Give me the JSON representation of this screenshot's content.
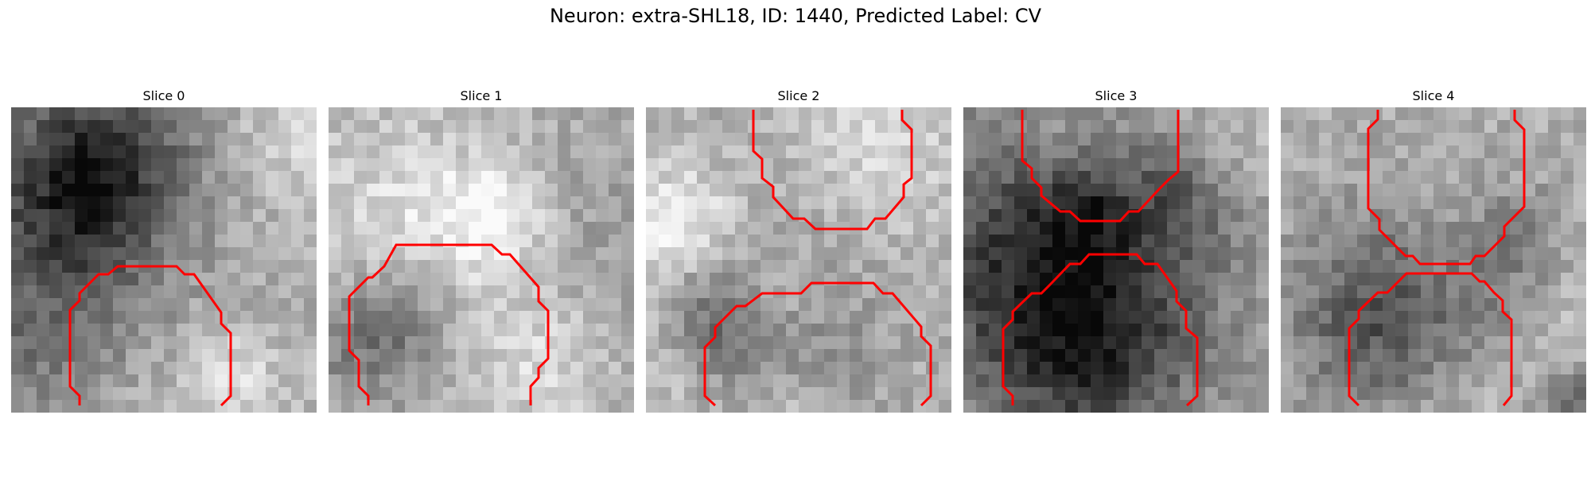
{
  "figure": {
    "title": "Neuron: extra-SHL18, ID: 1440, Predicted Label: CV"
  },
  "colors": {
    "background": "#ffffff",
    "contour": "#ff0000",
    "image_palette": "grayscale"
  },
  "panels": [
    {
      "title": "Slice 0",
      "content": "grayscale microscopy tile with red contour"
    },
    {
      "title": "Slice 1",
      "content": "grayscale microscopy tile with red contour"
    },
    {
      "title": "Slice 2",
      "content": "grayscale microscopy tile with red contours"
    },
    {
      "title": "Slice 3",
      "content": "grayscale microscopy tile with red contours"
    },
    {
      "title": "Slice 4",
      "content": "grayscale microscopy tile with red contours"
    }
  ]
}
